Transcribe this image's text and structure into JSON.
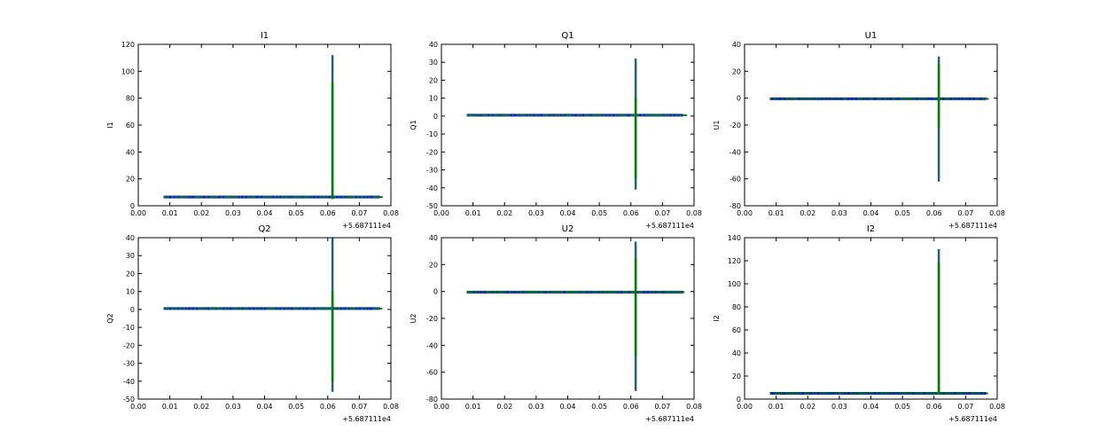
{
  "chart_data": [
    {
      "type": "line",
      "title": "I1",
      "ylabel": "I1",
      "xlim": [
        0.0,
        0.08
      ],
      "ylim": [
        0,
        120
      ],
      "yticks": [
        0,
        20,
        40,
        60,
        80,
        100,
        120
      ],
      "xticks": [
        "0.00",
        "0.01",
        "0.02",
        "0.03",
        "0.04",
        "0.05",
        "0.06",
        "0.07",
        "0.08"
      ],
      "x_offset": "+5.687111e4",
      "x_range": [
        0.008,
        0.0765
      ],
      "baseline": 6.5,
      "spike_x": 0.0615,
      "spike_range": [
        5,
        112
      ],
      "green_range": [
        5,
        92
      ]
    },
    {
      "type": "line",
      "title": "Q1",
      "ylabel": "Q1",
      "xlim": [
        0.0,
        0.08
      ],
      "ylim": [
        -50,
        40
      ],
      "yticks": [
        -50,
        -40,
        -30,
        -20,
        -10,
        0,
        10,
        20,
        30,
        40
      ],
      "xticks": [
        "0.00",
        "0.01",
        "0.02",
        "0.03",
        "0.04",
        "0.05",
        "0.06",
        "0.07",
        "0.08"
      ],
      "x_offset": "+5.687111e4",
      "x_range": [
        0.008,
        0.0765
      ],
      "baseline": 0.5,
      "spike_x": 0.0615,
      "spike_range": [
        -41,
        32
      ],
      "green_range": [
        -35,
        10
      ]
    },
    {
      "type": "line",
      "title": "U1",
      "ylabel": "U1",
      "xlim": [
        0.0,
        0.08
      ],
      "ylim": [
        -80,
        40
      ],
      "yticks": [
        -80,
        -60,
        -40,
        -20,
        0,
        20,
        40
      ],
      "xticks": [
        "0.00",
        "0.01",
        "0.02",
        "0.03",
        "0.04",
        "0.05",
        "0.06",
        "0.07",
        "0.08"
      ],
      "x_offset": "+5.687111e4",
      "x_range": [
        0.008,
        0.0765
      ],
      "baseline": -0.5,
      "spike_x": 0.0615,
      "spike_range": [
        -62,
        31
      ],
      "green_range": [
        -22,
        25
      ]
    },
    {
      "type": "line",
      "title": "Q2",
      "ylabel": "Q2",
      "xlim": [
        0.0,
        0.08
      ],
      "ylim": [
        -50,
        40
      ],
      "yticks": [
        -50,
        -40,
        -30,
        -20,
        -10,
        0,
        10,
        20,
        30,
        40
      ],
      "xticks": [
        "0.00",
        "0.01",
        "0.02",
        "0.03",
        "0.04",
        "0.05",
        "0.06",
        "0.07",
        "0.08"
      ],
      "x_offset": "+5.687111e4",
      "x_range": [
        0.008,
        0.0765
      ],
      "baseline": 0.5,
      "spike_x": 0.0615,
      "spike_range": [
        -46,
        40
      ],
      "green_range": [
        -40,
        10
      ]
    },
    {
      "type": "line",
      "title": "U2",
      "ylabel": "U2",
      "xlim": [
        0.0,
        0.08
      ],
      "ylim": [
        -80,
        40
      ],
      "yticks": [
        -80,
        -60,
        -40,
        -20,
        0,
        20,
        40
      ],
      "xticks": [
        "0.00",
        "0.01",
        "0.02",
        "0.03",
        "0.04",
        "0.05",
        "0.06",
        "0.07",
        "0.08"
      ],
      "x_offset": "+5.687111e4",
      "x_range": [
        0.008,
        0.0765
      ],
      "baseline": -0.5,
      "spike_x": 0.0615,
      "spike_range": [
        -74,
        37
      ],
      "green_range": [
        -48,
        25
      ]
    },
    {
      "type": "line",
      "title": "I2",
      "ylabel": "I2",
      "xlim": [
        0.0,
        0.08
      ],
      "ylim": [
        0,
        140
      ],
      "yticks": [
        0,
        20,
        40,
        60,
        80,
        100,
        120,
        140
      ],
      "xticks": [
        "0.00",
        "0.01",
        "0.02",
        "0.03",
        "0.04",
        "0.05",
        "0.06",
        "0.07",
        "0.08"
      ],
      "x_offset": "+5.687111e4",
      "x_range": [
        0.008,
        0.0765
      ],
      "baseline": 5,
      "spike_x": 0.0615,
      "spike_range": [
        4,
        130
      ],
      "green_range": [
        4,
        118
      ]
    }
  ],
  "colors": {
    "blue": "#0000ff",
    "green": "#008000",
    "teal": "#1f5f7f"
  }
}
